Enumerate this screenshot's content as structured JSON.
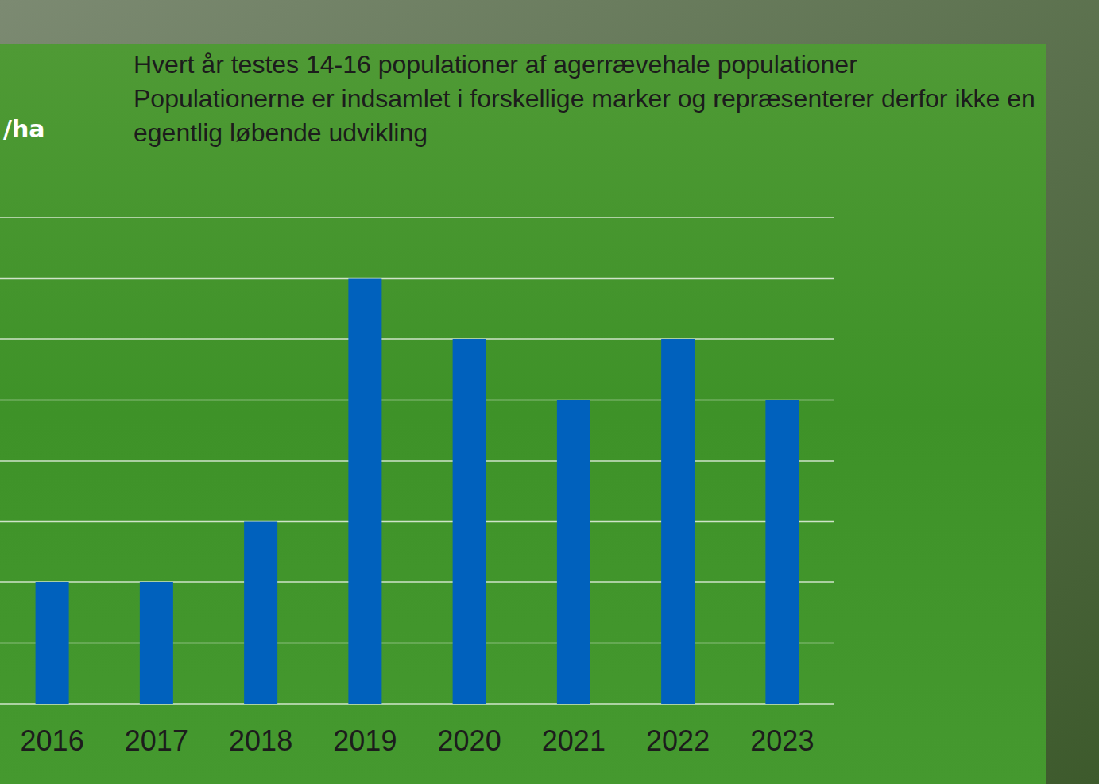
{
  "chart_data": {
    "type": "bar",
    "title": "Hvert år testes 14-16 populationer af agerrævehale populationer",
    "subtitle": "Populationerne er indsamlet i forskellige marker og repræsenterer derfor ikke en egentlig løbende udvikling",
    "y_label": "/ha",
    "categories": [
      "2016",
      "2017",
      "2018",
      "2019",
      "2020",
      "2021",
      "2022",
      "2023"
    ],
    "values": [
      2,
      2,
      3,
      7,
      6,
      5,
      6,
      5
    ],
    "color": "#0061bd",
    "ylim": [
      0,
      8
    ],
    "yticks": [
      0,
      1,
      2,
      3,
      4,
      5,
      6,
      7,
      8
    ],
    "grid": true,
    "tick_labels": "x"
  }
}
